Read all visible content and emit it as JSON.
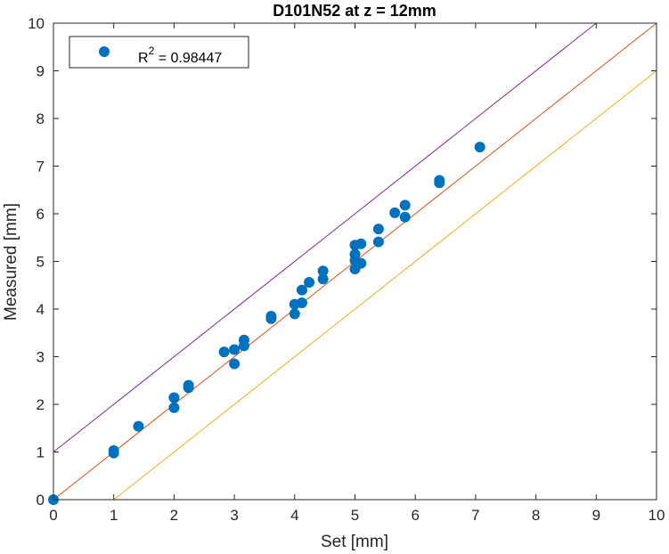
{
  "chart_data": {
    "type": "scatter",
    "title": "D101N52 at z = 12mm",
    "xlabel": "Set [mm]",
    "ylabel": "Measured [mm]",
    "xlim": [
      0,
      10
    ],
    "ylim": [
      0,
      10
    ],
    "xticks": [
      "0",
      "1",
      "2",
      "3",
      "4",
      "5",
      "6",
      "7",
      "8",
      "9",
      "10"
    ],
    "yticks": [
      "0",
      "1",
      "2",
      "3",
      "4",
      "5",
      "6",
      "7",
      "8",
      "9",
      "10"
    ],
    "grid": false,
    "legend": {
      "placement": "top-left",
      "label_prefix": "R",
      "label_exponent": "2",
      "label_suffix": " = 0.98447"
    },
    "series": [
      {
        "kind": "points",
        "color": "#0072BD",
        "points": [
          [
            0,
            0
          ],
          [
            1,
            1.03
          ],
          [
            1,
            0.98
          ],
          [
            1.41,
            1.54
          ],
          [
            2,
            2.14
          ],
          [
            2,
            1.93
          ],
          [
            2.24,
            2.4
          ],
          [
            2.24,
            2.35
          ],
          [
            2.83,
            3.1
          ],
          [
            3,
            3.15
          ],
          [
            3,
            2.85
          ],
          [
            3.16,
            3.35
          ],
          [
            3.16,
            3.23
          ],
          [
            3.61,
            3.85
          ],
          [
            3.61,
            3.8
          ],
          [
            4,
            4.1
          ],
          [
            4,
            3.9
          ],
          [
            4.12,
            4.4
          ],
          [
            4.12,
            4.13
          ],
          [
            4.24,
            4.56
          ],
          [
            4.47,
            4.8
          ],
          [
            4.47,
            4.63
          ],
          [
            5,
            5.34
          ],
          [
            5,
            5.15
          ],
          [
            5,
            5.02
          ],
          [
            5,
            4.84
          ],
          [
            5.1,
            5.37
          ],
          [
            5.1,
            4.96
          ],
          [
            5.39,
            5.68
          ],
          [
            5.39,
            5.41
          ],
          [
            5.66,
            6.02
          ],
          [
            5.83,
            6.18
          ],
          [
            5.83,
            5.93
          ],
          [
            6.4,
            6.7
          ],
          [
            6.4,
            6.65
          ],
          [
            7.07,
            7.4
          ]
        ]
      },
      {
        "kind": "line",
        "color": "#7E2F8E",
        "x": [
          0,
          9
        ],
        "y": [
          1,
          10
        ]
      },
      {
        "kind": "line",
        "color": "#D95319",
        "x": [
          0,
          10
        ],
        "y": [
          0,
          10
        ]
      },
      {
        "kind": "line",
        "color": "#EDB120",
        "x": [
          1,
          10
        ],
        "y": [
          0,
          9
        ]
      }
    ]
  }
}
